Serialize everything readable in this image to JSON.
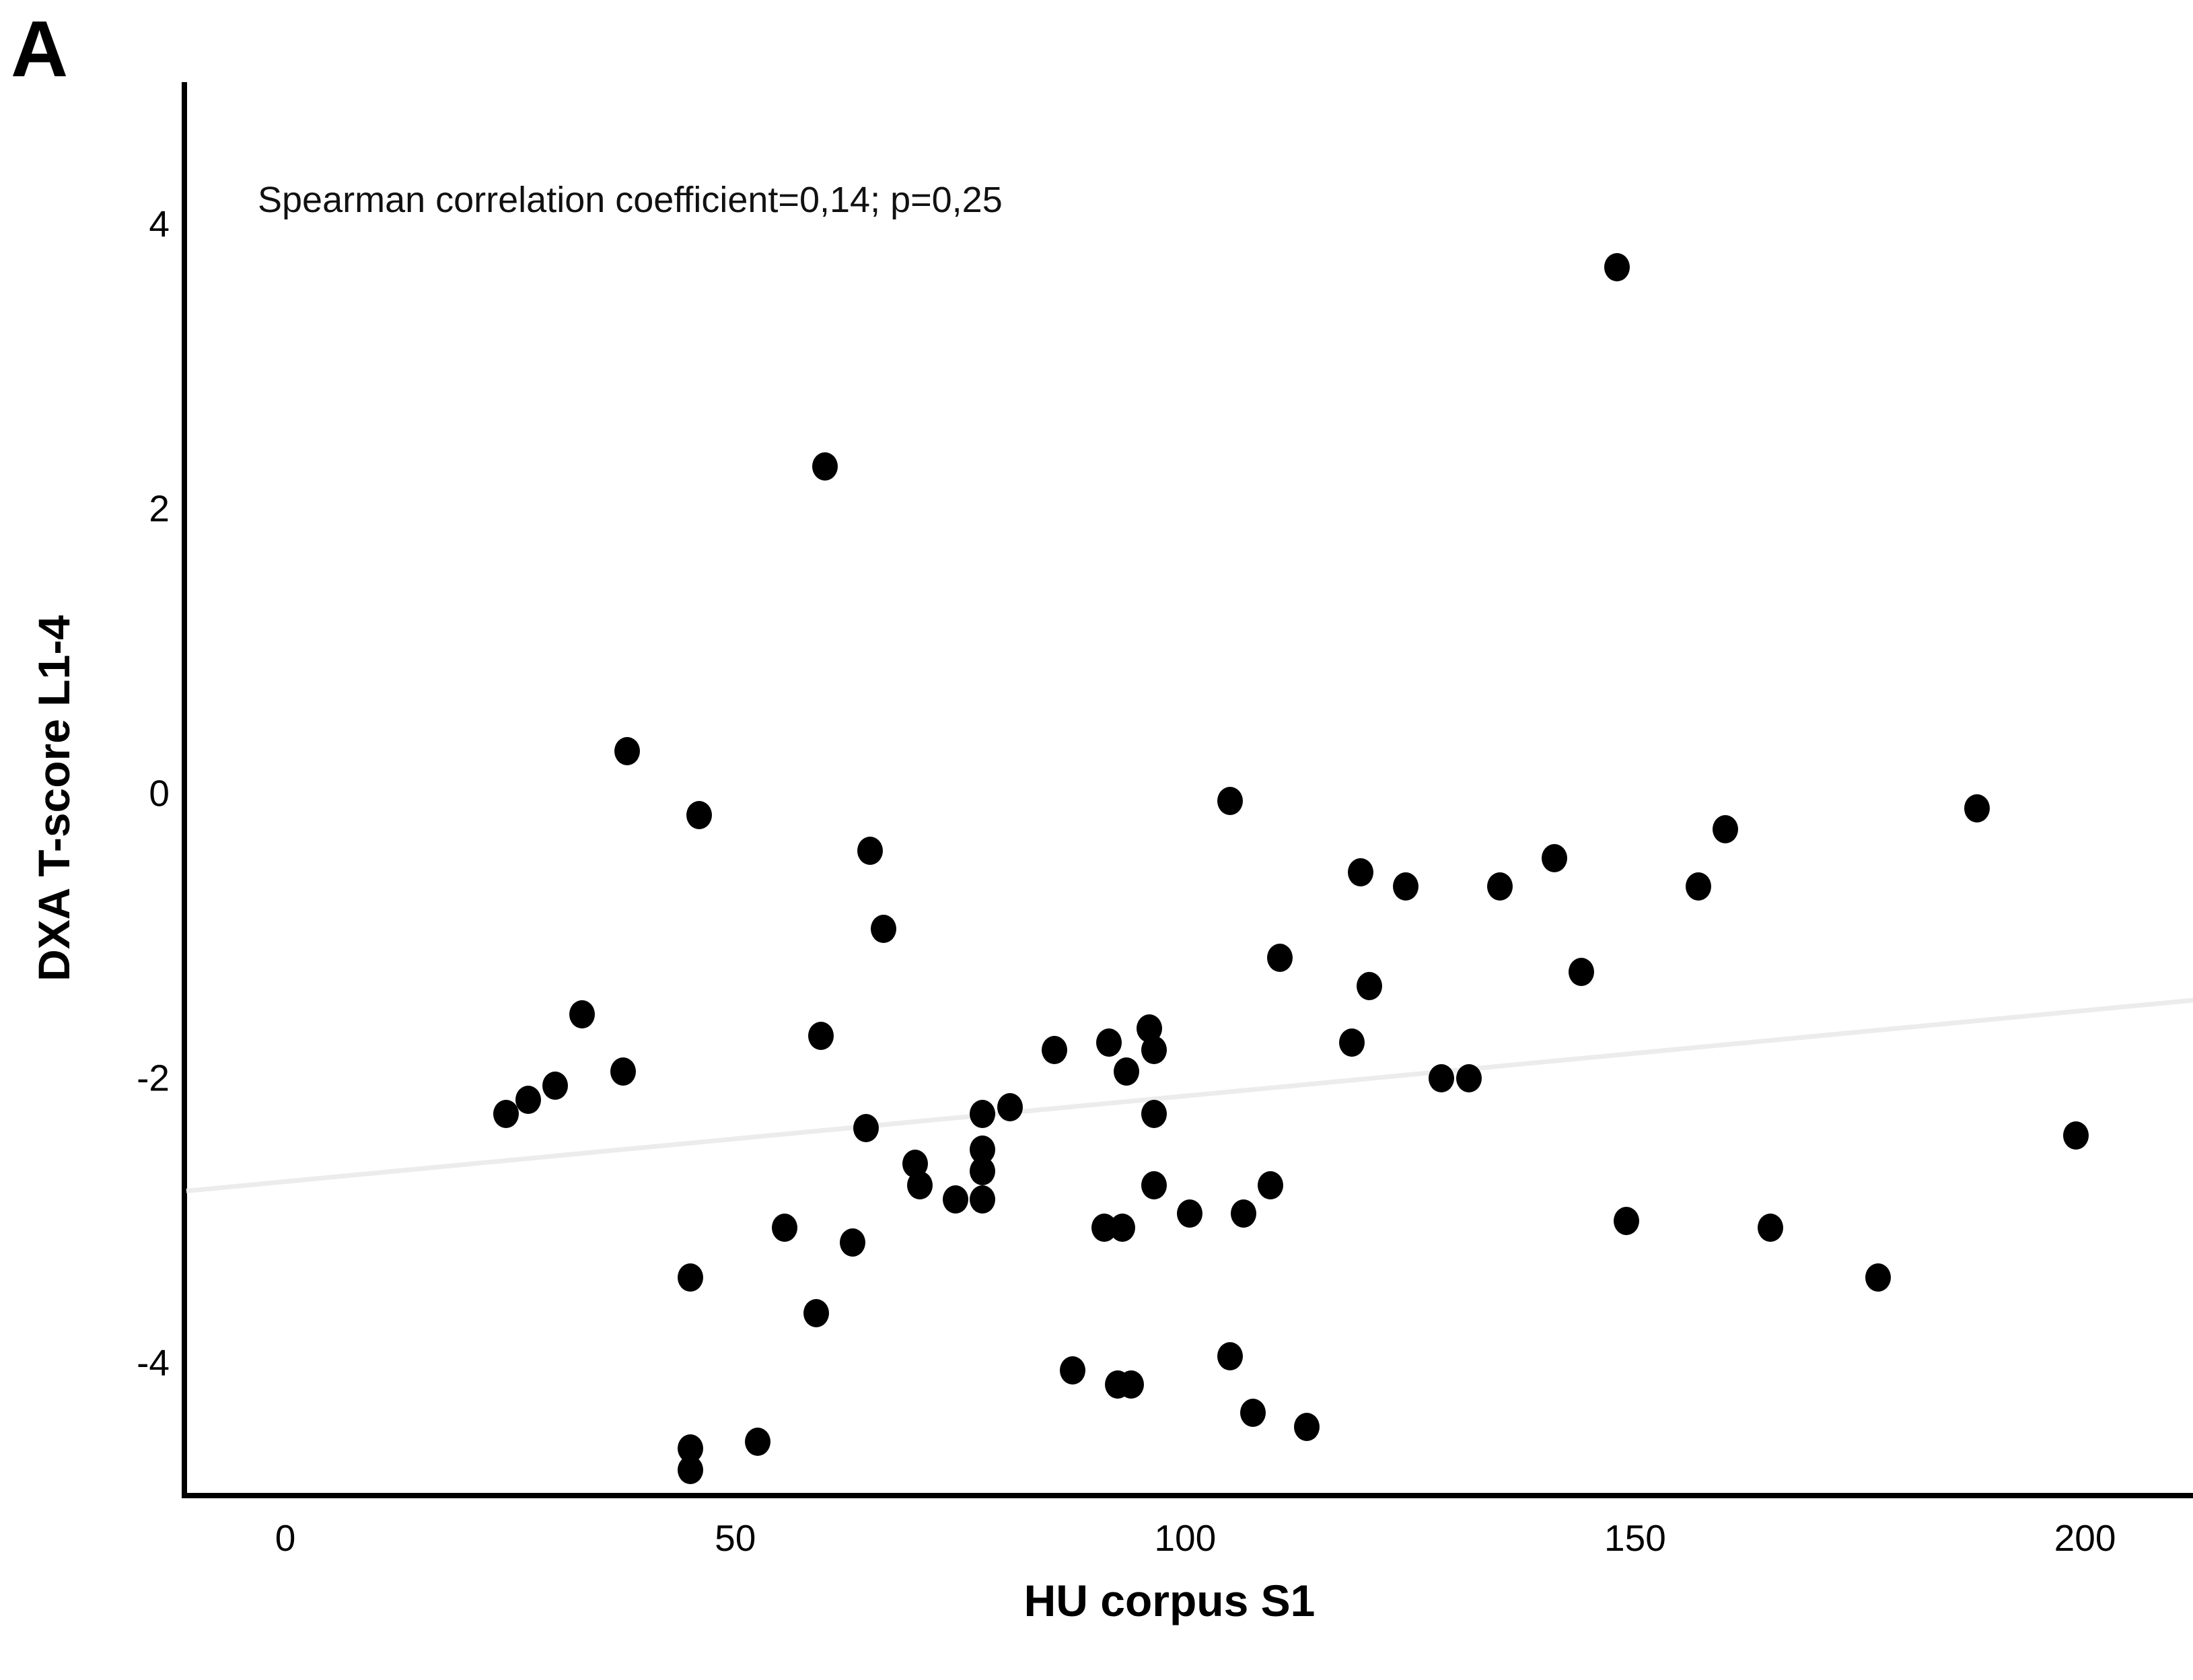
{
  "panel_label": "A",
  "annotation": "Spearman correlation coefficient=0,14; p=0,25",
  "chart_data": {
    "type": "scatter",
    "title": "",
    "xlabel": "HU corpus S1",
    "ylabel": "DXA T-score L1-4",
    "x_ticks": [
      0,
      50,
      100,
      150,
      200
    ],
    "y_ticks": [
      4,
      2,
      0,
      -2,
      -4
    ],
    "xlim": [
      -11,
      212
    ],
    "ylim": [
      -4.93,
      5.0
    ],
    "grid": false,
    "legend": false,
    "marker_color": "#000000",
    "trend_line": {
      "color": "#ececec",
      "width": 7,
      "x": [
        -11,
        212
      ],
      "y": [
        -2.79,
        -1.45
      ]
    },
    "points": [
      [
        24.5,
        -2.25
      ],
      [
        27,
        -2.15
      ],
      [
        30,
        -2.05
      ],
      [
        33,
        -1.55
      ],
      [
        37.5,
        -1.95
      ],
      [
        38,
        0.3
      ],
      [
        45,
        -3.4
      ],
      [
        45,
        -4.6
      ],
      [
        45,
        -4.75
      ],
      [
        46,
        -0.15
      ],
      [
        52.5,
        -4.55
      ],
      [
        55.5,
        -3.05
      ],
      [
        59,
        -3.65
      ],
      [
        59.5,
        -1.7
      ],
      [
        60,
        2.3
      ],
      [
        63,
        -3.15
      ],
      [
        64.5,
        -2.35
      ],
      [
        65,
        -0.4
      ],
      [
        66.5,
        -0.95
      ],
      [
        70,
        -2.6
      ],
      [
        70.5,
        -2.75
      ],
      [
        74.5,
        -2.85
      ],
      [
        77.5,
        -2.25
      ],
      [
        77.5,
        -2.5
      ],
      [
        77.5,
        -2.65
      ],
      [
        77.5,
        -2.85
      ],
      [
        80.5,
        -2.2
      ],
      [
        85.5,
        -1.8
      ],
      [
        87.5,
        -4.05
      ],
      [
        91,
        -3.05
      ],
      [
        91.5,
        -1.75
      ],
      [
        92.5,
        -4.15
      ],
      [
        93,
        -3.05
      ],
      [
        93.5,
        -1.95
      ],
      [
        94,
        -4.15
      ],
      [
        96,
        -1.65
      ],
      [
        96.5,
        -1.8
      ],
      [
        96.5,
        -2.25
      ],
      [
        96.5,
        -2.75
      ],
      [
        100.5,
        -2.95
      ],
      [
        105,
        -0.05
      ],
      [
        105,
        -3.95
      ],
      [
        106.5,
        -2.95
      ],
      [
        107.5,
        -4.35
      ],
      [
        109.5,
        -2.75
      ],
      [
        110.5,
        -1.15
      ],
      [
        113.5,
        -4.45
      ],
      [
        118.5,
        -1.75
      ],
      [
        119.5,
        -0.55
      ],
      [
        120.5,
        -1.35
      ],
      [
        124.5,
        -0.65
      ],
      [
        128.5,
        -2.0
      ],
      [
        131.5,
        -2.0
      ],
      [
        135,
        -0.65
      ],
      [
        141,
        -0.45
      ],
      [
        144,
        -1.25
      ],
      [
        148,
        3.7
      ],
      [
        149,
        -3.0
      ],
      [
        157,
        -0.65
      ],
      [
        160,
        -0.25
      ],
      [
        165,
        -3.05
      ],
      [
        177,
        -3.4
      ],
      [
        188,
        -0.1
      ],
      [
        199,
        -2.4
      ]
    ]
  }
}
